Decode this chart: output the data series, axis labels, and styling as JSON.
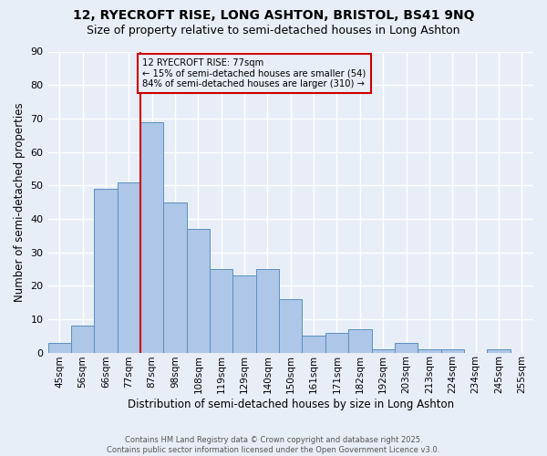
{
  "title1": "12, RYECROFT RISE, LONG ASHTON, BRISTOL, BS41 9NQ",
  "title2": "Size of property relative to semi-detached houses in Long Ashton",
  "xlabel": "Distribution of semi-detached houses by size in Long Ashton",
  "ylabel": "Number of semi-detached properties",
  "categories": [
    "45sqm",
    "56sqm",
    "66sqm",
    "77sqm",
    "87sqm",
    "98sqm",
    "108sqm",
    "119sqm",
    "129sqm",
    "140sqm",
    "150sqm",
    "161sqm",
    "171sqm",
    "182sqm",
    "192sqm",
    "203sqm",
    "213sqm",
    "224sqm",
    "234sqm",
    "245sqm",
    "255sqm"
  ],
  "values": [
    3,
    8,
    49,
    51,
    69,
    45,
    37,
    25,
    23,
    25,
    16,
    5,
    6,
    7,
    1,
    3,
    1,
    1,
    0,
    1,
    0
  ],
  "bar_color": "#aec6e8",
  "bar_edge_color": "#5a8fc0",
  "highlight_label": "12 RYECROFT RISE: 77sqm",
  "pct_smaller": 15,
  "pct_smaller_n": 54,
  "pct_larger": 84,
  "pct_larger_n": 310,
  "vline_color": "#cc0000",
  "annotation_box_color": "#cc0000",
  "ylim": [
    0,
    90
  ],
  "yticks": [
    0,
    10,
    20,
    30,
    40,
    50,
    60,
    70,
    80,
    90
  ],
  "bg_color": "#e8eef8",
  "grid_color": "#ffffff",
  "footer": "Contains HM Land Registry data © Crown copyright and database right 2025.\nContains public sector information licensed under the Open Government Licence v3.0.",
  "title1_fontsize": 10,
  "title2_fontsize": 9,
  "xlabel_fontsize": 8.5,
  "ylabel_fontsize": 8.5,
  "vline_cat": "77sqm"
}
